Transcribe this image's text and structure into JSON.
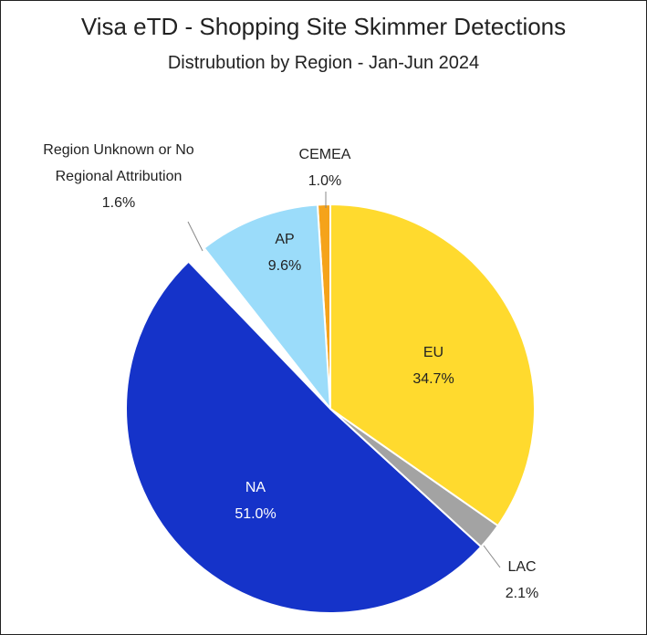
{
  "chart_data": {
    "type": "pie",
    "title": "Visa eTD - Shopping Site Skimmer Detections",
    "subtitle": "Distrubution by Region - Jan-Jun 2024",
    "categories": [
      "EU",
      "LAC",
      "NA",
      "Region Unknown or No Regional Attribution",
      "AP",
      "CEMEA"
    ],
    "values": [
      34.7,
      2.1,
      51.0,
      1.6,
      9.6,
      1.0
    ],
    "value_labels": [
      "34.7%",
      "2.1%",
      "51.0%",
      "1.6%",
      "9.6%",
      "1.0%"
    ],
    "colors": [
      "#ffda2e",
      "#a3a3a3",
      "#1533c9",
      "#ffffff",
      "#9bdcfa",
      "#f5a31a"
    ]
  }
}
